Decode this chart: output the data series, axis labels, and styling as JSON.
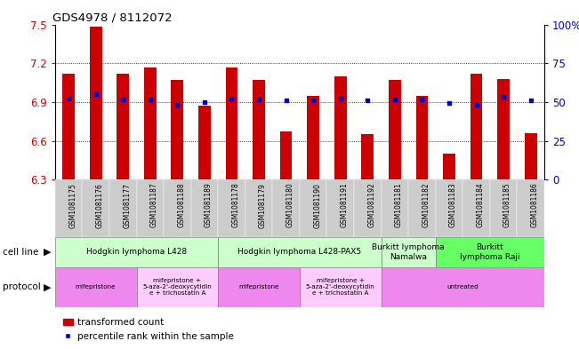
{
  "title": "GDS4978 / 8112072",
  "samples": [
    "GSM1081175",
    "GSM1081176",
    "GSM1081177",
    "GSM1081187",
    "GSM1081188",
    "GSM1081189",
    "GSM1081178",
    "GSM1081179",
    "GSM1081180",
    "GSM1081190",
    "GSM1081191",
    "GSM1081192",
    "GSM1081181",
    "GSM1081182",
    "GSM1081183",
    "GSM1081184",
    "GSM1081185",
    "GSM1081186"
  ],
  "bar_values": [
    7.12,
    7.48,
    7.12,
    7.17,
    7.07,
    6.87,
    7.17,
    7.07,
    6.67,
    6.95,
    7.1,
    6.65,
    7.07,
    6.95,
    6.5,
    7.12,
    7.08,
    6.66
  ],
  "blue_values": [
    6.93,
    6.96,
    6.92,
    6.92,
    6.88,
    6.9,
    6.93,
    6.92,
    6.91,
    6.91,
    6.93,
    6.91,
    6.92,
    6.92,
    6.89,
    6.88,
    6.94,
    6.91
  ],
  "ymin": 6.3,
  "ymax": 7.5,
  "yticks": [
    6.3,
    6.6,
    6.9,
    7.2,
    7.5
  ],
  "right_yticks": [
    0,
    25,
    50,
    75,
    100
  ],
  "bar_color": "#cc0000",
  "blue_color": "#0000cc",
  "bg_color": "#ffffff",
  "cell_line_groups": [
    {
      "label": "Hodgkin lymphoma L428",
      "start": 0,
      "end": 5,
      "color": "#ccffcc"
    },
    {
      "label": "Hodgkin lymphoma L428-PAX5",
      "start": 6,
      "end": 11,
      "color": "#ccffcc"
    },
    {
      "label": "Burkitt lymphoma\nNamalwa",
      "start": 12,
      "end": 13,
      "color": "#ccffcc"
    },
    {
      "label": "Burkitt\nlymphoma Raji",
      "start": 14,
      "end": 17,
      "color": "#66ff66"
    }
  ],
  "protocol_groups": [
    {
      "label": "mifepristone",
      "start": 0,
      "end": 2,
      "color": "#ee88ee"
    },
    {
      "label": "mifepristone +\n5-aza-2'-deoxycytidin\ne + trichostatin A",
      "start": 3,
      "end": 5,
      "color": "#ffccff"
    },
    {
      "label": "mifepristone",
      "start": 6,
      "end": 8,
      "color": "#ee88ee"
    },
    {
      "label": "mifepristone +\n5-aza-2'-deoxycytidin\ne + trichostatin A",
      "start": 9,
      "end": 11,
      "color": "#ffccff"
    },
    {
      "label": "untreated",
      "start": 12,
      "end": 17,
      "color": "#ee88ee"
    }
  ],
  "xtick_bg": "#cccccc"
}
